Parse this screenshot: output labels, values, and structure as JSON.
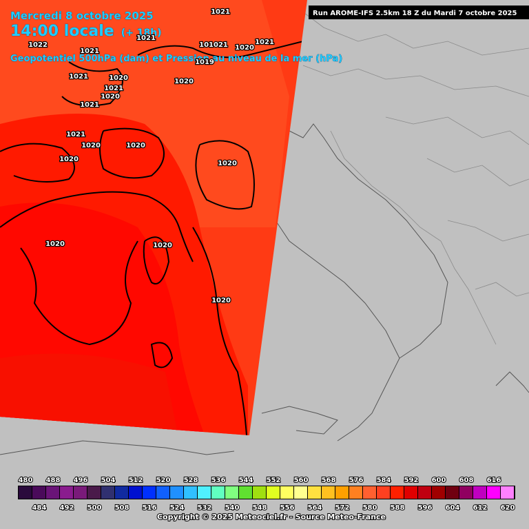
{
  "header": {
    "date": "Mercredi 8 octobre 2025",
    "time": "14:00 locale",
    "lead": "(+ 18h)",
    "field": "Geopotentiel 500hPa (dam) et Pression au niveau de la mer (hPa)",
    "run": "Run AROME-IFS 2.5km 18 Z du Mardi 7 octobre 2025"
  },
  "isobar_labels": [
    "1021",
    "1022",
    "1021",
    "1021",
    "101021",
    "1020",
    "1021",
    "1019",
    "1021",
    "1020",
    "1020",
    "1021",
    "1020",
    "1021",
    "1021",
    "1020",
    "1020",
    "1020",
    "1020",
    "1020",
    "1020",
    "1020"
  ],
  "colorbar": {
    "values": [
      480,
      484,
      488,
      492,
      496,
      500,
      504,
      508,
      512,
      516,
      520,
      524,
      528,
      532,
      536,
      540,
      544,
      548,
      552,
      556,
      560,
      564,
      568,
      572,
      576,
      580,
      584,
      588,
      592,
      596,
      600,
      604,
      608,
      612,
      616,
      620
    ],
    "colors": [
      "#2a0a3c",
      "#4a0a5a",
      "#6a1478",
      "#8a1c8e",
      "#7a1a7a",
      "#4a1a4a",
      "#303070",
      "#102aa0",
      "#0010d0",
      "#0030ff",
      "#1060ff",
      "#2090ff",
      "#30c0ff",
      "#50f0ff",
      "#60ffc0",
      "#80ff80",
      "#60e030",
      "#a0e010",
      "#e0ff20",
      "#ffff60",
      "#ffff90",
      "#ffe040",
      "#ffc020",
      "#ffa000",
      "#ff8020",
      "#ff6030",
      "#ff4020",
      "#ff2000",
      "#e00000",
      "#c00010",
      "#a00000",
      "#700010",
      "#900060",
      "#c000c0",
      "#ff00ff",
      "#ff80ff"
    ]
  },
  "copyright": "Copyright © 2025 Meteociel.fr - Source Meteo-France"
}
